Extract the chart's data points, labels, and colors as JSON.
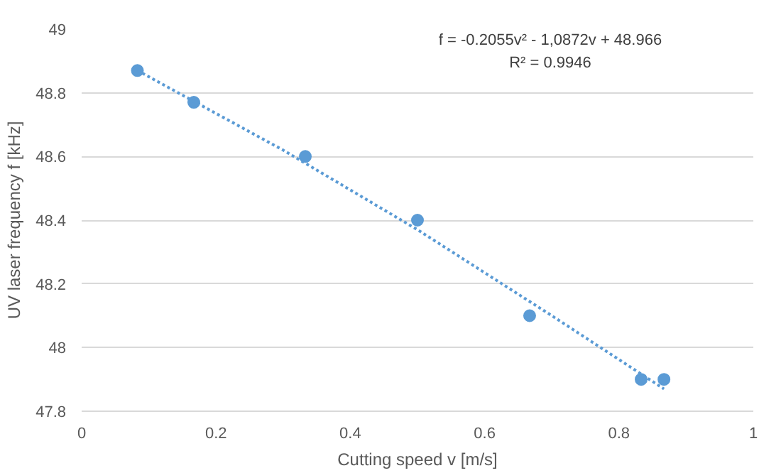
{
  "chart_data": {
    "type": "scatter",
    "xlabel": "Cutting speed v [m/s]",
    "ylabel": "UV laser frequency f [kHz]",
    "xlim": [
      0,
      1
    ],
    "xticks": [
      0,
      0.2,
      0.4,
      0.6,
      0.8,
      1
    ],
    "ylim": [
      47.8,
      49
    ],
    "yticks": [
      47.8,
      48,
      48.2,
      48.4,
      48.6,
      48.8,
      49
    ],
    "grid": "y",
    "series": [
      {
        "color": "#5b9bd5",
        "marker": "circle",
        "x": [
          0.083,
          0.167,
          0.333,
          0.5,
          0.667,
          0.833,
          0.867
        ],
        "values": [
          48.87,
          48.77,
          48.6,
          48.4,
          48.1,
          47.9,
          47.9
        ]
      },
      {
        "type": "line",
        "color": "#5b9bd5",
        "line_style": "dotted",
        "marker": "none",
        "x": [
          0.083,
          0.3,
          0.5,
          0.7,
          0.867
        ],
        "values": [
          48.87,
          48.62,
          48.37,
          48.1,
          47.87
        ]
      }
    ],
    "annotations": [
      "f = -0.2055v² - 1,0872v + 48.966",
      "R² = 0.9946"
    ]
  }
}
